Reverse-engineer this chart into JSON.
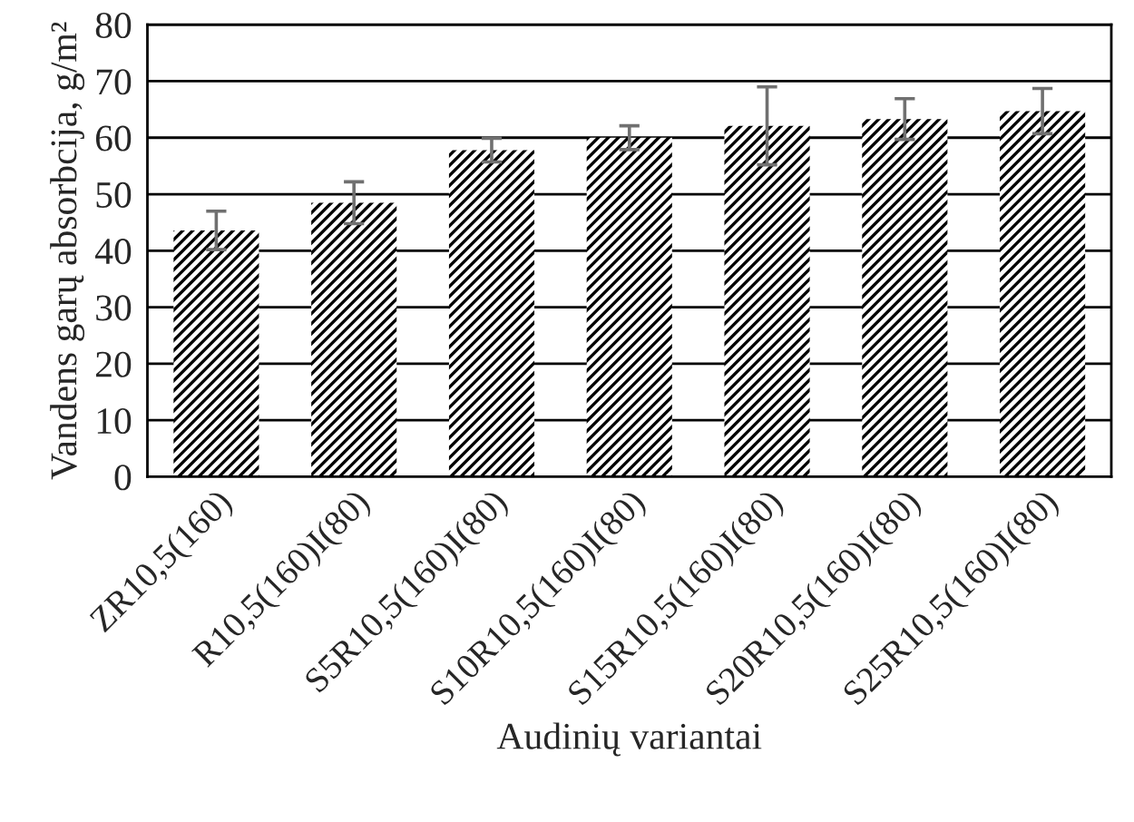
{
  "chart_data": {
    "type": "bar",
    "xlabel": "Audinių variantai",
    "ylabel": "Vandens garų absorbcija, g/m²",
    "categories": [
      "ZR10,5(160)",
      "R10,5(160)I(80)",
      "S5R10,5(160)I(80)",
      "S10R10,5(160)I(80)",
      "S15R10,5(160)I(80)",
      "S20R10,5(160)I(80)",
      "S25R10,5(160)I(80)"
    ],
    "values": [
      43.6,
      48.5,
      57.8,
      60.0,
      62.1,
      63.3,
      64.7
    ],
    "errors": [
      3.4,
      3.7,
      2.1,
      2.1,
      6.9,
      3.6,
      4.0
    ],
    "color": "#000000",
    "ylim": [
      0,
      80
    ],
    "yticks": [
      0,
      10,
      20,
      30,
      40,
      50,
      60,
      70,
      80
    ],
    "grid": "y"
  }
}
